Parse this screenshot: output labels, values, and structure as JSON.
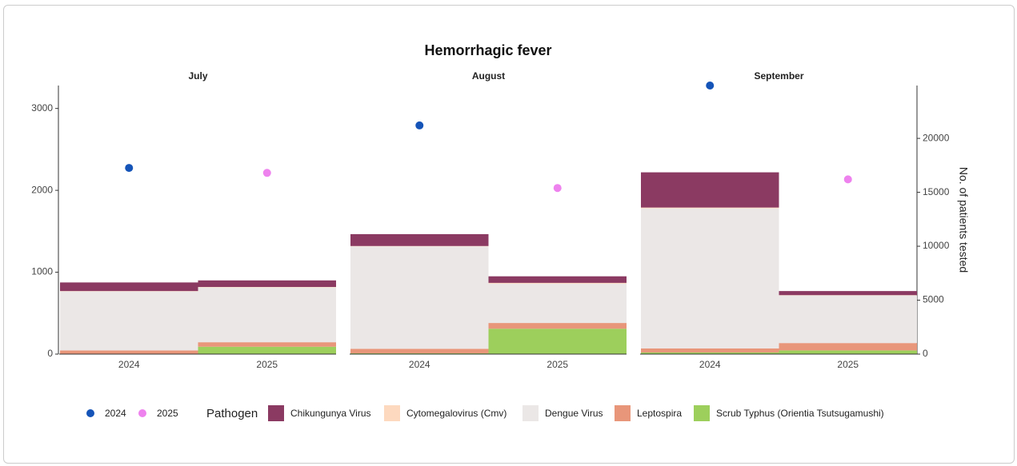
{
  "chart_data": {
    "type": "faceted_stacked_bar",
    "title": "Hemorrhagic fever",
    "facets": [
      "July",
      "August",
      "September"
    ],
    "categories": [
      "2024",
      "2025",
      "2024",
      "2025",
      "2024",
      "2025"
    ],
    "ylim": [
      0,
      3280
    ],
    "yticks": [
      0,
      1000,
      2000,
      3000
    ],
    "y2lim": [
      0,
      24900
    ],
    "y2ticks": [
      0,
      5000,
      10000,
      15000,
      20000
    ],
    "y2label": "No. of patients tested",
    "legend_title": "Pathogen",
    "series": [
      {
        "name": "Chikungunya Virus",
        "color": "#8b3a62",
        "values": [
          105,
          80,
          145,
          80,
          430,
          50
        ]
      },
      {
        "name": "Cytomegalovirus (Cmv)",
        "color": "#fdd9bf",
        "values": [
          5,
          5,
          5,
          10,
          10,
          5
        ]
      },
      {
        "name": "Dengue Virus",
        "color": "#ebe7e6",
        "values": [
          720,
          670,
          1250,
          480,
          1710,
          580
        ]
      },
      {
        "name": "Leptospira",
        "color": "#e8967a",
        "values": [
          40,
          55,
          55,
          70,
          50,
          90
        ]
      },
      {
        "name": "Scrub Typhus (Orientia Tsutsugamushi)",
        "color": "#9dcf5c",
        "values": [
          5,
          90,
          10,
          310,
          20,
          45
        ]
      }
    ],
    "points": [
      {
        "name": "2024",
        "color": "#1554b8",
        "axis": "y2",
        "values": [
          17260,
          21200,
          24900
        ]
      },
      {
        "name": "2025",
        "color": "#ee82ee",
        "axis": "y2",
        "values": [
          16800,
          15400,
          16200
        ]
      }
    ]
  }
}
